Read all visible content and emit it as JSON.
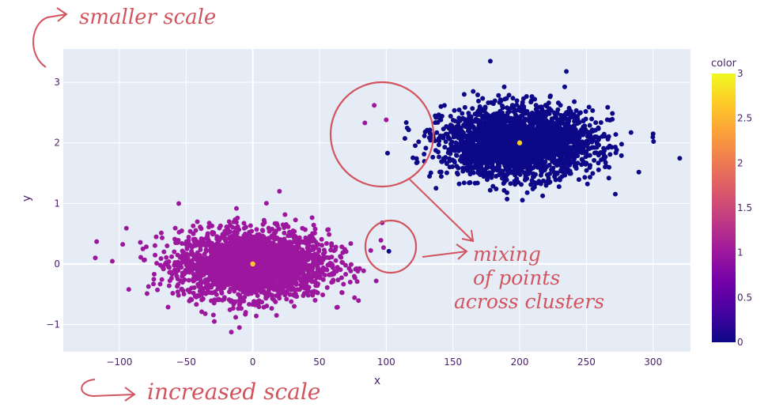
{
  "chart_data": {
    "type": "scatter",
    "xlabel": "x",
    "ylabel": "y",
    "xlim": [
      -142,
      328
    ],
    "ylim": [
      -1.45,
      3.55
    ],
    "x_ticks": [
      -100,
      -50,
      0,
      50,
      100,
      150,
      200,
      250,
      300
    ],
    "x_tick_labels": [
      "−100",
      "−50",
      "0",
      "50",
      "100",
      "150",
      "200",
      "250",
      "300"
    ],
    "y_ticks": [
      -1,
      0,
      1,
      2,
      3
    ],
    "y_tick_labels": [
      "−1",
      "0",
      "1",
      "2",
      "3"
    ],
    "grid": true,
    "colorbar": {
      "title": "color",
      "range": [
        0,
        3
      ],
      "ticks": [
        "0",
        "0.5",
        "1",
        "1.5",
        "2",
        "2.5",
        "3"
      ],
      "colors": [
        "#0d0887",
        "#46039f",
        "#7201a8",
        "#9c179e",
        "#bd3786",
        "#d8576b",
        "#ed7953",
        "#fb9f3a",
        "#fdca26",
        "#f0f921"
      ]
    },
    "clusters": [
      {
        "center_x": 0,
        "center_y": 0,
        "sd_x": 28,
        "sd_y": 0.28,
        "color_value": 1,
        "n": 2600
      },
      {
        "center_x": 200,
        "center_y": 2,
        "sd_x": 28,
        "sd_y": 0.28,
        "color_value": 0,
        "n": 2600
      }
    ],
    "centroids": [
      {
        "x": 0,
        "y": 0,
        "color_value": 3
      },
      {
        "x": 200,
        "y": 2,
        "color_value": 3
      }
    ],
    "outliers": [
      {
        "x": 97,
        "y": 0.68,
        "color_value": 1
      },
      {
        "x": 96,
        "y": 0.39,
        "color_value": 1
      },
      {
        "x": 98,
        "y": 0.27,
        "color_value": 1
      },
      {
        "x": 102,
        "y": 0.21,
        "color_value": 0
      },
      {
        "x": 91,
        "y": 2.62,
        "color_value": 1
      },
      {
        "x": 84,
        "y": 2.33,
        "color_value": 1
      },
      {
        "x": 100,
        "y": 2.38,
        "color_value": 1
      },
      {
        "x": 101,
        "y": 1.83,
        "color_value": 0
      },
      {
        "x": 178,
        "y": 3.35,
        "color_value": 0
      },
      {
        "x": 235,
        "y": 3.18,
        "color_value": 0
      },
      {
        "x": 300,
        "y": 2.15,
        "color_value": 0
      },
      {
        "x": -117,
        "y": 0.37,
        "color_value": 1
      },
      {
        "x": -118,
        "y": 0.1,
        "color_value": 1
      },
      {
        "x": -10,
        "y": -1.05,
        "color_value": 1
      },
      {
        "x": 20,
        "y": 1.2,
        "color_value": 1
      }
    ]
  },
  "annotations": {
    "top": "smaller scale",
    "bottom": "increased scale",
    "mixing_line1": "mixing",
    "mixing_line2": "of points",
    "mixing_line3": "across clusters"
  },
  "annotation_color": "#d2545f",
  "plot_bg": "#e5ecf6"
}
